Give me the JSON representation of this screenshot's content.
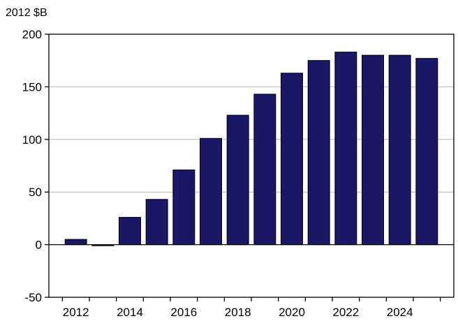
{
  "chart_data": {
    "type": "bar",
    "title": "",
    "ylabel": "2012 $B",
    "xlabel": "",
    "categories": [
      "2012",
      "2013",
      "2014",
      "2015",
      "2016",
      "2017",
      "2018",
      "2019",
      "2020",
      "2021",
      "2022",
      "2023",
      "2024",
      "2025"
    ],
    "x_tick_labels": [
      "2012",
      "2014",
      "2016",
      "2018",
      "2020",
      "2022",
      "2024"
    ],
    "values": [
      5,
      -1,
      26,
      43,
      71,
      101,
      123,
      143,
      163,
      175,
      183,
      180,
      180,
      177
    ],
    "ylim": [
      -50,
      200
    ],
    "y_ticks": [
      -50,
      0,
      50,
      100,
      150,
      200
    ],
    "grid": true,
    "bar_color": "#1a1866",
    "grid_color": "#b8b8b8"
  }
}
